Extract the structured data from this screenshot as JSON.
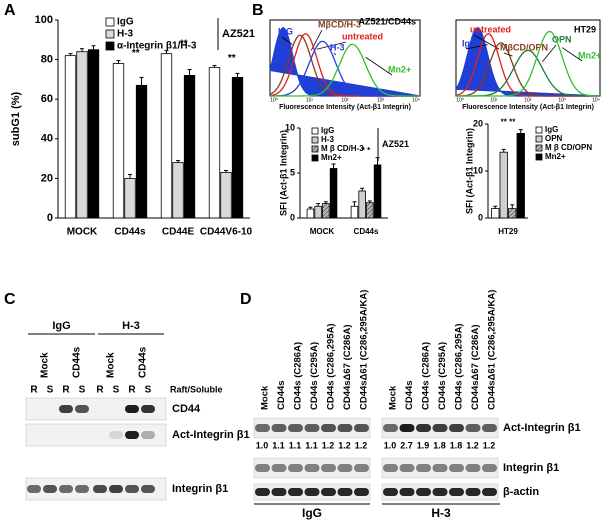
{
  "figure": {
    "panels": [
      "A",
      "B",
      "C",
      "D"
    ]
  },
  "chart_data": [
    {
      "type": "bar",
      "y_label": "subG1 (%)",
      "categories": [
        "MOCK",
        "CD44s",
        "CD44E",
        "CD44V6-10"
      ],
      "series": [
        {
          "name": "IgG",
          "color": "#ffffff",
          "values": [
            82,
            78,
            83,
            76
          ],
          "errors": [
            1,
            1.5,
            1.5,
            1
          ]
        },
        {
          "name": "H-3",
          "color": "#d9d9d9",
          "values": [
            84,
            20,
            28,
            23
          ],
          "errors": [
            1.5,
            2,
            1,
            1
          ]
        },
        {
          "name": "α-Integrin β1/H-3",
          "color": "#000000",
          "values": [
            85,
            67,
            72,
            71
          ],
          "errors": [
            2,
            4,
            3,
            2
          ]
        }
      ],
      "legend_group": "AZ521",
      "ylim": [
        0,
        100
      ],
      "yticks": [
        0,
        20,
        40,
        60,
        80,
        100
      ],
      "annotations": [
        {
          "text": "**",
          "category": "CD44s"
        },
        {
          "text": "**",
          "category": "CD44E"
        },
        {
          "text": "**",
          "category": "CD44V6-10"
        }
      ]
    },
    {
      "type": "bar",
      "y_label": "SFI (Act-β1 Integrin)",
      "categories": [
        "MOCK",
        "CD44s"
      ],
      "series": [
        {
          "name": "IgG",
          "color": "#ffffff",
          "values": [
            1,
            1.3
          ],
          "errors": [
            0.2,
            0.5
          ]
        },
        {
          "name": "H-3",
          "color": "#d0d0d0",
          "values": [
            1.3,
            3.0
          ],
          "errors": [
            0.3,
            0.3
          ]
        },
        {
          "name": "M β CD/H-3",
          "color": "#888888",
          "pattern": "hatch",
          "values": [
            1.6,
            1.7
          ],
          "errors": [
            0.2,
            0.2
          ]
        },
        {
          "name": "Mn2+",
          "color": "#000000",
          "values": [
            5.5,
            5.9
          ],
          "errors": [
            0.5,
            0.8
          ]
        }
      ],
      "legend_group": "AZ521",
      "ylim": [
        0,
        10
      ],
      "yticks": [
        0,
        5,
        10
      ],
      "annotations": [
        {
          "text": "*   *",
          "category": "CD44s"
        }
      ]
    },
    {
      "type": "bar",
      "y_label": "SFI (Act-β1 Integrin)",
      "categories": [
        "HT29"
      ],
      "series": [
        {
          "name": "IgG",
          "color": "#ffffff",
          "values": [
            2
          ],
          "errors": [
            0.5
          ]
        },
        {
          "name": "OPN",
          "color": "#d0d0d0",
          "values": [
            14
          ],
          "errors": [
            0.6
          ]
        },
        {
          "name": "M β CD/OPN",
          "color": "#888888",
          "pattern": "hatch",
          "values": [
            2
          ],
          "errors": [
            0.8
          ]
        },
        {
          "name": "Mn2+",
          "color": "#000000",
          "values": [
            18
          ],
          "errors": [
            0.8
          ]
        }
      ],
      "ylim": [
        0,
        20
      ],
      "yticks": [
        0,
        10,
        20
      ],
      "annotations": [
        {
          "text": "** **",
          "category": "HT29"
        }
      ]
    }
  ],
  "histograms": [
    {
      "title": "AZ521/CD44s",
      "x_label": "Fluorescence Intensity (Act-β1 Integrin)",
      "xtick_labels": [
        "10⁰",
        "10¹",
        "10²",
        "10³",
        "10⁴"
      ],
      "labels": [
        {
          "text": "IgG",
          "color": "#1f3fd6"
        },
        {
          "text": "MβCD/H-3",
          "color": "#8b3a1a"
        },
        {
          "text": "untreated",
          "color": "#e02020"
        },
        {
          "text": "H-3",
          "color": "#2040e0"
        },
        {
          "text": "Mn2+",
          "color": "#30c030"
        }
      ]
    },
    {
      "title": "HT29",
      "x_label": "Fluorescence Intensity (Act-β1 Integrin)",
      "xtick_labels": [
        "10⁰",
        "10¹",
        "10²",
        "10³",
        "10⁴"
      ],
      "labels": [
        {
          "text": "IgG",
          "color": "#1f3fd6"
        },
        {
          "text": "untreated",
          "color": "#e02020"
        },
        {
          "text": "MβCD/OPN",
          "color": "#8b3a1a"
        },
        {
          "text": "OPN",
          "color": "#1f7a3a"
        },
        {
          "text": "Mn2+",
          "color": "#30c030"
        }
      ]
    }
  ],
  "blot_c": {
    "groups": [
      "IgG",
      "H-3"
    ],
    "subgroups": [
      "Mock",
      "CD44s",
      "Mock",
      "CD44s"
    ],
    "lanes": [
      "R",
      "S",
      "R",
      "S",
      "R",
      "S",
      "R",
      "S"
    ],
    "lane_caption": "Raft/Soluble",
    "rows": [
      "CD44",
      "Act-Integrin β1",
      "Integrin β1"
    ]
  },
  "blot_d": {
    "groups": [
      "IgG",
      "H-3"
    ],
    "lanes": [
      "Mock",
      "CD44s",
      "CD44s (C286A)",
      "CD44s (C295A)",
      "CD44s (C286,295A)",
      "CD44sΔ67 (C286A)",
      "CD44sΔ61 (C286,295A/KA)",
      "Mock",
      "CD44s",
      "CD44s (C286A)",
      "CD44s (C295A)",
      "CD44s (C286,295A)",
      "CD44sΔ67 (C286A)",
      "CD44sΔ61 (C286,295A/KA)"
    ],
    "rows": [
      "Act-Integrin β1",
      "Integrin β1",
      "β-actin"
    ],
    "ratios": [
      "1.0",
      "1.1",
      "1.1",
      "1.1",
      "1.2",
      "1.2",
      "1.2",
      "1.0",
      "2.7",
      "1.9",
      "1.8",
      "1.8",
      "1.2",
      "1.2"
    ]
  }
}
